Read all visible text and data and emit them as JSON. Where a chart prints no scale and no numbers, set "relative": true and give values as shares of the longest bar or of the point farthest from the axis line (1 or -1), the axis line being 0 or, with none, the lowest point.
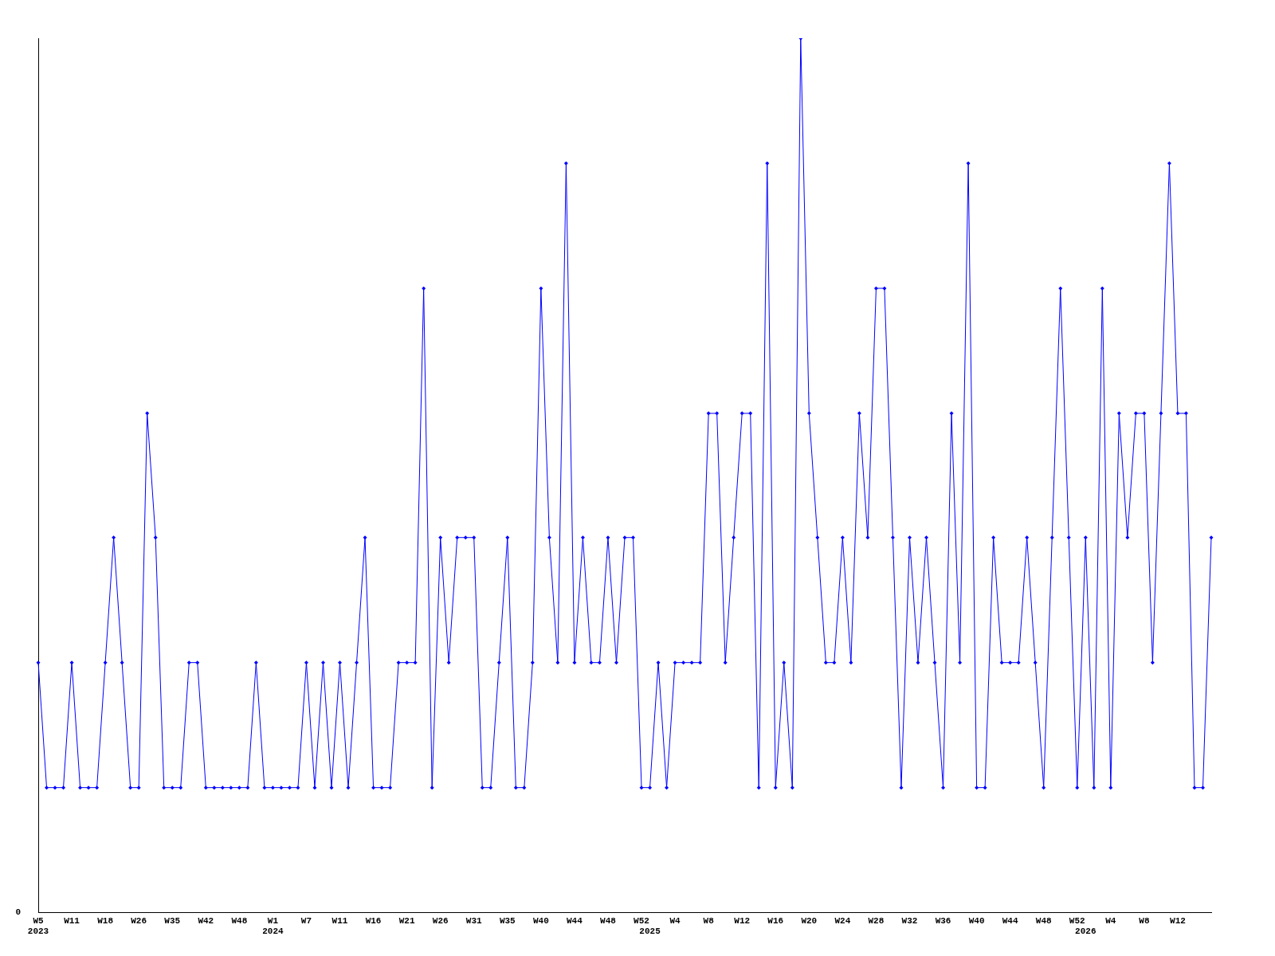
{
  "chart_data": {
    "type": "line",
    "relative": true,
    "grid": false,
    "legend": false,
    "marker": "diamond",
    "line_style": "solid",
    "annotations": [
      "0"
    ],
    "categories": [
      "W5\n2023",
      null,
      null,
      null,
      "W11",
      null,
      null,
      null,
      "W18",
      null,
      null,
      null,
      "W26",
      null,
      null,
      null,
      "W35",
      null,
      null,
      null,
      "W42",
      null,
      null,
      null,
      "W48",
      null,
      null,
      null,
      "W1\n2024",
      null,
      null,
      null,
      "W7",
      null,
      null,
      null,
      "W11",
      null,
      null,
      null,
      "W16",
      null,
      null,
      null,
      "W21",
      null,
      null,
      null,
      "W26",
      null,
      null,
      null,
      "W31",
      null,
      null,
      null,
      "W35",
      null,
      null,
      null,
      "W40",
      null,
      null,
      null,
      "W44",
      null,
      null,
      null,
      "W48",
      null,
      null,
      null,
      "W52",
      "\n2025",
      null,
      null,
      "W4",
      null,
      null,
      null,
      "W8",
      null,
      null,
      null,
      "W12",
      null,
      null,
      null,
      "W16",
      null,
      null,
      null,
      "W20",
      null,
      null,
      null,
      "W24",
      null,
      null,
      null,
      "W28",
      null,
      null,
      null,
      "W32",
      null,
      null,
      null,
      "W36",
      null,
      null,
      null,
      "W40",
      null,
      null,
      null,
      "W44",
      null,
      null,
      null,
      "W48",
      null,
      null,
      null,
      "W52",
      "\n2026",
      null,
      null,
      "W4",
      null,
      null,
      null,
      "W8",
      null,
      null,
      null,
      "W12",
      null,
      null,
      null,
      null
    ],
    "series": [
      {
        "color": "#0000ff",
        "values": [
          0.286,
          0.143,
          0.143,
          0.143,
          0.286,
          0.143,
          0.143,
          0.143,
          0.286,
          0.429,
          0.286,
          0.143,
          0.143,
          0.571,
          0.429,
          0.143,
          0.143,
          0.143,
          0.286,
          0.286,
          0.143,
          0.143,
          0.143,
          0.143,
          0.143,
          0.143,
          0.286,
          0.143,
          0.143,
          0.143,
          0.143,
          0.143,
          0.286,
          0.143,
          0.286,
          0.143,
          0.286,
          0.143,
          0.286,
          0.429,
          0.143,
          0.143,
          0.143,
          0.286,
          0.286,
          0.286,
          0.714,
          0.143,
          0.429,
          0.286,
          0.429,
          0.429,
          0.429,
          0.143,
          0.143,
          0.286,
          0.429,
          0.143,
          0.143,
          0.286,
          0.714,
          0.429,
          0.286,
          0.857,
          0.286,
          0.429,
          0.286,
          0.286,
          0.429,
          0.286,
          0.429,
          0.429,
          0.143,
          0.143,
          0.286,
          0.143,
          0.286,
          0.286,
          0.286,
          0.286,
          0.571,
          0.571,
          0.286,
          0.429,
          0.571,
          0.571,
          0.143,
          0.857,
          0.143,
          0.286,
          0.143,
          1,
          0.571,
          0.429,
          0.286,
          0.286,
          0.429,
          0.286,
          0.571,
          0.429,
          0.714,
          0.714,
          0.429,
          0.143,
          0.429,
          0.286,
          0.429,
          0.286,
          0.143,
          0.571,
          0.286,
          0.857,
          0.143,
          0.143,
          0.429,
          0.286,
          0.286,
          0.286,
          0.429,
          0.286,
          0.143,
          0.429,
          0.714,
          0.429,
          0.143,
          0.429,
          0.143,
          0.714,
          0.143,
          0.571,
          0.429,
          0.571,
          0.571,
          0.286,
          0.571,
          0.857,
          0.571,
          0.571,
          0.143,
          0.143,
          0.429
        ]
      }
    ]
  }
}
